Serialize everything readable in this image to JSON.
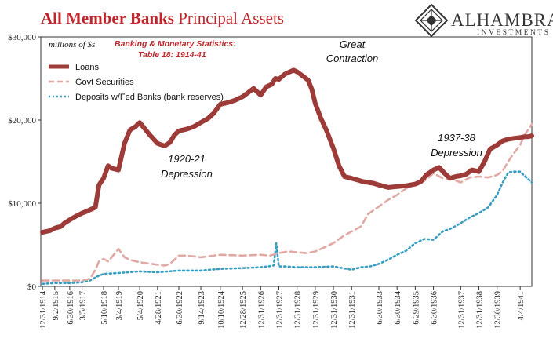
{
  "title_main": "All Member Banks",
  "title_rest": "Principal Assets",
  "logo": {
    "name": "ALHAMBRA",
    "sub": "INVESTMENTS"
  },
  "units_label": "millions of $s",
  "source_note": [
    "Banking & Monetary Statistics:",
    "Table 18: 1914-41"
  ],
  "annotations": [
    {
      "id": "great-contraction",
      "lines": [
        "Great",
        "Contraction"
      ]
    },
    {
      "id": "depression-1920",
      "lines": [
        "1920-21",
        "Depression"
      ]
    },
    {
      "id": "depression-1937",
      "lines": [
        "1937-38",
        "Depression"
      ]
    }
  ],
  "colors": {
    "loans": "#9c3b38",
    "govt": "#e0a9a4",
    "deposits": "#3a9ec2",
    "title": "#c0272d"
  },
  "chart_data": {
    "type": "line",
    "title": "All Member Banks Principal Assets",
    "ylabel": "millions of $s",
    "ylim": [
      0,
      30000
    ],
    "yticks": [
      0,
      10000,
      20000,
      30000
    ],
    "ytick_labels": [
      "$0",
      "$10,000",
      "$20,000",
      "$30,000"
    ],
    "xlim": [
      1914.9,
      1941.9
    ],
    "xtick_labels": [
      "12/31/1914",
      "9/2/1915",
      "6/30/1916",
      "3/5/1917",
      "5/10/1918",
      "3/4/1919",
      "5/4/1920",
      "4/28/1921",
      "6/30/1922",
      "9/14/1923",
      "10/10/1924",
      "12/28/1925",
      "12/31/1926",
      "12/31/1927",
      "12/31/1928",
      "12/31/1929",
      "12/31/1930",
      "12/31/1931",
      "6/30/1933",
      "6/30/1934",
      "6/29/1935",
      "6/30/1936",
      "12/31/1937",
      "12/31/1938",
      "12/30/1939",
      "4/4/1941"
    ],
    "xtick_pos": [
      1914.99,
      1915.67,
      1916.49,
      1917.17,
      1918.35,
      1919.17,
      1920.34,
      1921.32,
      1922.49,
      1923.7,
      1924.77,
      1925.99,
      1926.99,
      1927.99,
      1928.99,
      1929.99,
      1930.99,
      1931.99,
      1933.49,
      1934.49,
      1935.49,
      1936.49,
      1937.99,
      1938.99,
      1939.99,
      1941.26
    ],
    "grid": false,
    "legend_position": "top-left",
    "series": [
      {
        "name": "Loans",
        "style": "solid",
        "x": [
          1914.99,
          1915.4,
          1915.67,
          1916.0,
          1916.2,
          1916.49,
          1916.8,
          1917.17,
          1917.4,
          1917.7,
          1917.9,
          1918.1,
          1918.35,
          1918.6,
          1918.8,
          1919.17,
          1919.5,
          1919.8,
          1920.1,
          1920.34,
          1920.6,
          1920.9,
          1921.32,
          1921.7,
          1922.0,
          1922.25,
          1922.49,
          1922.9,
          1923.3,
          1923.7,
          1924.1,
          1924.4,
          1924.77,
          1925.2,
          1925.6,
          1925.99,
          1926.3,
          1926.6,
          1926.99,
          1927.3,
          1927.6,
          1927.8,
          1927.99,
          1928.3,
          1928.6,
          1928.8,
          1928.99,
          1929.3,
          1929.6,
          1929.8,
          1929.99,
          1930.3,
          1930.6,
          1930.99,
          1931.3,
          1931.6,
          1931.99,
          1932.3,
          1932.6,
          1932.9,
          1933.2,
          1933.49,
          1934.0,
          1934.49,
          1935.0,
          1935.49,
          1935.8,
          1936.1,
          1936.49,
          1936.8,
          1937.1,
          1937.4,
          1937.7,
          1937.99,
          1938.3,
          1938.6,
          1938.99,
          1939.3,
          1939.6,
          1939.99,
          1940.3,
          1940.6,
          1940.9,
          1941.26,
          1941.5,
          1941.7,
          1941.9
        ],
        "y": [
          6500,
          6700,
          7000,
          7200,
          7600,
          8000,
          8400,
          8800,
          9000,
          9300,
          9500,
          12200,
          13000,
          14500,
          14200,
          14000,
          17200,
          18800,
          19200,
          19700,
          19000,
          18200,
          17200,
          16900,
          17300,
          18200,
          18700,
          18900,
          19200,
          19700,
          20200,
          20800,
          21900,
          22100,
          22400,
          22800,
          23300,
          23800,
          23000,
          24000,
          24300,
          25000,
          24900,
          25500,
          25800,
          26000,
          25800,
          25300,
          24800,
          23700,
          22000,
          20200,
          18800,
          16600,
          14500,
          13200,
          13000,
          12800,
          12600,
          12500,
          12400,
          12200,
          11900,
          12000,
          12100,
          12300,
          12600,
          13400,
          14000,
          14300,
          13600,
          13000,
          13200,
          13300,
          13500,
          14000,
          13800,
          15000,
          16500,
          17000,
          17500,
          17700,
          17800,
          17900,
          18000,
          18000,
          18100
        ]
      },
      {
        "name": "Govt Securities",
        "style": "dashed",
        "x": [
          1914.99,
          1915.67,
          1916.49,
          1917.17,
          1917.6,
          1917.9,
          1918.1,
          1918.35,
          1918.6,
          1918.8,
          1919.17,
          1919.5,
          1919.8,
          1920.34,
          1921.32,
          1921.7,
          1922.0,
          1922.49,
          1922.9,
          1923.7,
          1924.77,
          1925.99,
          1926.99,
          1927.5,
          1927.99,
          1928.5,
          1928.99,
          1929.5,
          1929.99,
          1930.3,
          1930.99,
          1931.5,
          1931.99,
          1932.5,
          1932.9,
          1933.49,
          1934.0,
          1934.49,
          1935.0,
          1935.49,
          1936.0,
          1936.49,
          1937.0,
          1937.5,
          1937.99,
          1938.5,
          1938.99,
          1939.5,
          1939.99,
          1940.3,
          1940.6,
          1940.9,
          1941.26,
          1941.5,
          1941.9
        ],
        "y": [
          700,
          700,
          700,
          700,
          900,
          2000,
          3000,
          3300,
          3000,
          3500,
          4500,
          3500,
          3200,
          2900,
          2600,
          2500,
          2700,
          3700,
          3700,
          3500,
          3800,
          3700,
          3800,
          3700,
          4000,
          4200,
          4100,
          4000,
          4200,
          4500,
          5200,
          6000,
          6600,
          7200,
          8700,
          9600,
          10400,
          11000,
          11800,
          12200,
          12700,
          13600,
          13000,
          12900,
          12500,
          13100,
          13200,
          13100,
          13400,
          13900,
          15000,
          16000,
          17000,
          18200,
          19500
        ]
      },
      {
        "name": "Deposits w/Fed Banks (bank reserves)",
        "style": "dotted",
        "x": [
          1914.99,
          1915.67,
          1916.49,
          1917.17,
          1917.6,
          1918.0,
          1918.35,
          1919.17,
          1920.34,
          1921.32,
          1922.49,
          1923.7,
          1924.77,
          1925.99,
          1926.99,
          1927.4,
          1927.7,
          1927.85,
          1927.99,
          1928.3,
          1928.99,
          1929.99,
          1930.99,
          1931.99,
          1932.5,
          1933.0,
          1933.49,
          1934.0,
          1934.49,
          1935.0,
          1935.49,
          1936.0,
          1936.49,
          1937.0,
          1937.5,
          1937.99,
          1938.5,
          1938.99,
          1939.5,
          1939.99,
          1940.3,
          1940.6,
          1940.9,
          1941.26,
          1941.5,
          1941.9
        ],
        "y": [
          300,
          400,
          400,
          500,
          700,
          1200,
          1500,
          1600,
          1800,
          1700,
          1900,
          1900,
          2100,
          2200,
          2300,
          2400,
          2500,
          5200,
          2400,
          2400,
          2300,
          2300,
          2400,
          2000,
          2300,
          2400,
          2700,
          3200,
          3800,
          4300,
          5200,
          5700,
          5600,
          6600,
          7000,
          7600,
          8300,
          8800,
          9500,
          11000,
          12500,
          13700,
          13800,
          13800,
          13300,
          12500
        ]
      }
    ]
  }
}
